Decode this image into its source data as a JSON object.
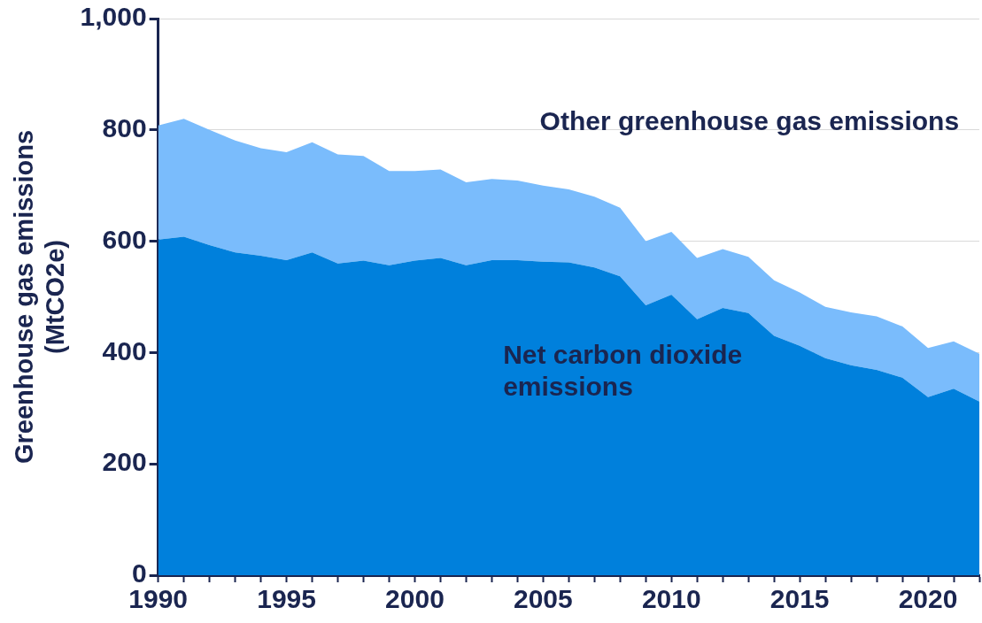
{
  "chart_data": {
    "type": "area",
    "stacked": true,
    "ylabel": "Greenhouse gas emissions\n(MtCO2e)",
    "x": [
      1990,
      1991,
      1992,
      1993,
      1994,
      1995,
      1996,
      1997,
      1998,
      1999,
      2000,
      2001,
      2002,
      2003,
      2004,
      2005,
      2006,
      2007,
      2008,
      2009,
      2010,
      2011,
      2012,
      2013,
      2014,
      2015,
      2016,
      2017,
      2018,
      2019,
      2020,
      2021,
      2022
    ],
    "series": [
      {
        "name": "Net carbon dioxide emissions",
        "color": "#0080dc",
        "values": [
          603,
          608,
          593,
          580,
          574,
          566,
          580,
          560,
          565,
          557,
          565,
          570,
          557,
          566,
          566,
          563,
          562,
          553,
          537,
          485,
          504,
          460,
          480,
          471,
          430,
          412,
          390,
          377,
          369,
          355,
          320,
          335,
          312
        ]
      },
      {
        "name": "Other greenhouse gas emissions",
        "color": "#7abcfc",
        "values": [
          205,
          212,
          207,
          201,
          193,
          194,
          198,
          196,
          188,
          169,
          161,
          159,
          149,
          146,
          143,
          137,
          131,
          127,
          123,
          115,
          113,
          110,
          106,
          101,
          100,
          96,
          92,
          95,
          96,
          92,
          88,
          85,
          86
        ]
      }
    ],
    "xlim": [
      1990,
      2022
    ],
    "xticks": [
      1990,
      {
        "value": 1991,
        "label": null
      },
      {
        "value": 1992,
        "label": null
      },
      {
        "value": 1993,
        "label": null
      },
      {
        "value": 1994,
        "label": null
      },
      1995,
      {
        "value": 1996,
        "label": null
      },
      {
        "value": 1997,
        "label": null
      },
      {
        "value": 1998,
        "label": null
      },
      {
        "value": 1999,
        "label": null
      },
      2000,
      {
        "value": 2001,
        "label": null
      },
      {
        "value": 2002,
        "label": null
      },
      {
        "value": 2003,
        "label": null
      },
      {
        "value": 2004,
        "label": null
      },
      2005,
      {
        "value": 2006,
        "label": null
      },
      {
        "value": 2007,
        "label": null
      },
      {
        "value": 2008,
        "label": null
      },
      {
        "value": 2009,
        "label": null
      },
      2010,
      {
        "value": 2011,
        "label": null
      },
      {
        "value": 2012,
        "label": null
      },
      {
        "value": 2013,
        "label": null
      },
      {
        "value": 2014,
        "label": null
      },
      2015,
      {
        "value": 2016,
        "label": null
      },
      {
        "value": 2017,
        "label": null
      },
      {
        "value": 2018,
        "label": null
      },
      {
        "value": 2019,
        "label": null
      },
      2020,
      {
        "value": 2021,
        "label": null
      },
      {
        "value": 2022,
        "label": null
      }
    ],
    "ylim": [
      0,
      1000
    ],
    "yticks": [
      0,
      200,
      400,
      600,
      800,
      {
        "value": 1000,
        "label": "1,000"
      }
    ],
    "grid": "y",
    "legend": false
  }
}
